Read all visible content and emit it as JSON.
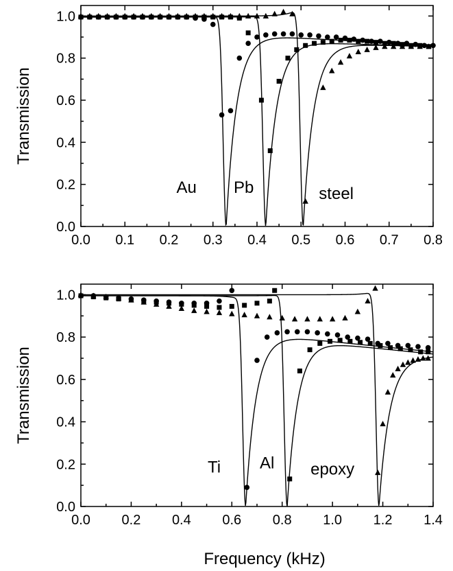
{
  "chart_data": [
    {
      "type": "scatter",
      "panel": "top",
      "xlabel": "",
      "ylabel": "Transmission",
      "xlim": [
        0.0,
        0.8
      ],
      "ylim": [
        0.0,
        1.05
      ],
      "xticks": [
        "0.0",
        "0.1",
        "0.2",
        "0.3",
        "0.4",
        "0.5",
        "0.6",
        "0.7",
        "0.8"
      ],
      "yticks": [
        "0.0",
        "0.2",
        "0.4",
        "0.6",
        "0.8",
        "1.0"
      ],
      "grid": false,
      "annotations": [
        {
          "text": "Au",
          "x": 0.24,
          "y": 0.16
        },
        {
          "text": "Pb",
          "x": 0.37,
          "y": 0.16
        },
        {
          "text": "steel",
          "x": 0.58,
          "y": 0.13
        }
      ],
      "series": [
        {
          "marker": "circle",
          "points": [
            [
              0.0,
              0.995
            ],
            [
              0.02,
              0.995
            ],
            [
              0.04,
              0.995
            ],
            [
              0.06,
              0.995
            ],
            [
              0.08,
              0.995
            ],
            [
              0.1,
              0.995
            ],
            [
              0.12,
              0.995
            ],
            [
              0.14,
              0.995
            ],
            [
              0.16,
              0.995
            ],
            [
              0.18,
              0.995
            ],
            [
              0.2,
              0.995
            ],
            [
              0.22,
              0.995
            ],
            [
              0.24,
              0.995
            ],
            [
              0.26,
              0.99
            ],
            [
              0.28,
              0.985
            ],
            [
              0.3,
              0.96
            ],
            [
              0.32,
              0.53
            ],
            [
              0.34,
              0.55
            ],
            [
              0.36,
              0.8
            ],
            [
              0.38,
              0.87
            ],
            [
              0.4,
              0.9
            ],
            [
              0.42,
              0.91
            ],
            [
              0.44,
              0.915
            ],
            [
              0.46,
              0.915
            ],
            [
              0.48,
              0.915
            ],
            [
              0.5,
              0.91
            ],
            [
              0.52,
              0.91
            ],
            [
              0.54,
              0.905
            ],
            [
              0.56,
              0.9
            ],
            [
              0.58,
              0.9
            ],
            [
              0.6,
              0.895
            ],
            [
              0.62,
              0.89
            ],
            [
              0.64,
              0.885
            ],
            [
              0.66,
              0.88
            ],
            [
              0.68,
              0.88
            ],
            [
              0.7,
              0.875
            ],
            [
              0.72,
              0.87
            ],
            [
              0.74,
              0.87
            ],
            [
              0.76,
              0.865
            ],
            [
              0.78,
              0.86
            ],
            [
              0.8,
              0.86
            ]
          ],
          "fit": {
            "start": 0.995,
            "dip_at": 0.33,
            "dip_min": 0.0,
            "peak": 1.0,
            "settle": 0.915,
            "end": 0.86
          }
        },
        {
          "marker": "square",
          "points": [
            [
              0.0,
              0.995
            ],
            [
              0.02,
              0.995
            ],
            [
              0.04,
              0.995
            ],
            [
              0.06,
              0.995
            ],
            [
              0.08,
              0.995
            ],
            [
              0.1,
              0.995
            ],
            [
              0.12,
              0.995
            ],
            [
              0.14,
              0.995
            ],
            [
              0.16,
              0.995
            ],
            [
              0.18,
              0.995
            ],
            [
              0.2,
              0.995
            ],
            [
              0.22,
              0.995
            ],
            [
              0.24,
              0.995
            ],
            [
              0.26,
              0.995
            ],
            [
              0.28,
              0.995
            ],
            [
              0.3,
              0.995
            ],
            [
              0.32,
              0.995
            ],
            [
              0.34,
              0.995
            ],
            [
              0.36,
              0.99
            ],
            [
              0.38,
              0.92
            ],
            [
              0.41,
              0.6
            ],
            [
              0.43,
              0.36
            ],
            [
              0.45,
              0.69
            ],
            [
              0.47,
              0.8
            ],
            [
              0.49,
              0.84
            ],
            [
              0.51,
              0.86
            ],
            [
              0.53,
              0.87
            ],
            [
              0.55,
              0.875
            ],
            [
              0.57,
              0.88
            ],
            [
              0.59,
              0.885
            ],
            [
              0.61,
              0.885
            ],
            [
              0.63,
              0.88
            ],
            [
              0.65,
              0.88
            ],
            [
              0.67,
              0.875
            ],
            [
              0.69,
              0.87
            ],
            [
              0.71,
              0.87
            ],
            [
              0.73,
              0.865
            ],
            [
              0.75,
              0.86
            ],
            [
              0.77,
              0.86
            ],
            [
              0.79,
              0.855
            ]
          ],
          "fit": {
            "start": 0.995,
            "dip_at": 0.42,
            "dip_min": 0.0,
            "peak": 1.0,
            "settle": 0.88,
            "end": 0.855
          }
        },
        {
          "marker": "triangle",
          "points": [
            [
              0.0,
              1.0
            ],
            [
              0.02,
              1.0
            ],
            [
              0.04,
              1.0
            ],
            [
              0.06,
              1.0
            ],
            [
              0.08,
              1.0
            ],
            [
              0.1,
              1.0
            ],
            [
              0.12,
              1.0
            ],
            [
              0.14,
              1.0
            ],
            [
              0.16,
              1.0
            ],
            [
              0.18,
              1.0
            ],
            [
              0.2,
              1.0
            ],
            [
              0.22,
              1.0
            ],
            [
              0.24,
              1.0
            ],
            [
              0.26,
              1.0
            ],
            [
              0.28,
              1.0
            ],
            [
              0.3,
              1.0
            ],
            [
              0.32,
              1.0
            ],
            [
              0.34,
              1.0
            ],
            [
              0.36,
              1.0
            ],
            [
              0.38,
              1.0
            ],
            [
              0.4,
              1.0
            ],
            [
              0.42,
              1.0
            ],
            [
              0.44,
              1.01
            ],
            [
              0.46,
              1.02
            ],
            [
              0.48,
              1.01
            ],
            [
              0.51,
              0.12
            ],
            [
              0.55,
              0.66
            ],
            [
              0.57,
              0.74
            ],
            [
              0.59,
              0.78
            ],
            [
              0.61,
              0.81
            ],
            [
              0.63,
              0.83
            ],
            [
              0.65,
              0.84
            ],
            [
              0.67,
              0.85
            ],
            [
              0.69,
              0.855
            ],
            [
              0.71,
              0.855
            ],
            [
              0.73,
              0.855
            ],
            [
              0.75,
              0.855
            ],
            [
              0.77,
              0.855
            ],
            [
              0.79,
              0.855
            ]
          ],
          "fit": {
            "start": 1.0,
            "dip_at": 0.505,
            "dip_min": 0.0,
            "peak": 1.05,
            "settle": 0.87,
            "end": 0.855
          }
        }
      ]
    },
    {
      "type": "scatter",
      "panel": "bottom",
      "xlabel": "Frequency (kHz)",
      "ylabel": "Transmission",
      "xlim": [
        0.0,
        1.4
      ],
      "ylim": [
        0.0,
        1.05
      ],
      "xticks": [
        "0.0",
        "0.2",
        "0.4",
        "0.6",
        "0.8",
        "1.0",
        "1.2",
        "1.4"
      ],
      "yticks": [
        "0.0",
        "0.2",
        "0.4",
        "0.6",
        "0.8",
        "1.0"
      ],
      "grid": false,
      "annotations": [
        {
          "text": "Ti",
          "x": 0.53,
          "y": 0.16
        },
        {
          "text": "Al",
          "x": 0.74,
          "y": 0.18
        },
        {
          "text": "epoxy",
          "x": 1.0,
          "y": 0.15
        }
      ],
      "series": [
        {
          "marker": "circle",
          "points": [
            [
              0.0,
              0.995
            ],
            [
              0.05,
              0.995
            ],
            [
              0.1,
              0.99
            ],
            [
              0.15,
              0.985
            ],
            [
              0.2,
              0.98
            ],
            [
              0.25,
              0.975
            ],
            [
              0.3,
              0.97
            ],
            [
              0.35,
              0.965
            ],
            [
              0.4,
              0.96
            ],
            [
              0.45,
              0.96
            ],
            [
              0.5,
              0.96
            ],
            [
              0.55,
              0.97
            ],
            [
              0.6,
              1.02
            ],
            [
              0.66,
              0.09
            ],
            [
              0.7,
              0.69
            ],
            [
              0.74,
              0.8
            ],
            [
              0.78,
              0.82
            ],
            [
              0.82,
              0.825
            ],
            [
              0.86,
              0.825
            ],
            [
              0.9,
              0.825
            ],
            [
              0.94,
              0.82
            ],
            [
              0.98,
              0.815
            ],
            [
              1.02,
              0.81
            ],
            [
              1.06,
              0.8
            ],
            [
              1.1,
              0.795
            ],
            [
              1.14,
              0.79
            ],
            [
              1.18,
              0.77
            ],
            [
              1.22,
              0.77
            ],
            [
              1.26,
              0.76
            ],
            [
              1.3,
              0.76
            ],
            [
              1.34,
              0.755
            ],
            [
              1.38,
              0.75
            ]
          ],
          "fit": {
            "start": 0.995,
            "dip_at": 0.655,
            "dip_min": 0.0,
            "peak": 0.97,
            "settle": 0.82,
            "end": 0.73
          }
        },
        {
          "marker": "square",
          "points": [
            [
              0.0,
              0.995
            ],
            [
              0.05,
              0.99
            ],
            [
              0.1,
              0.985
            ],
            [
              0.15,
              0.98
            ],
            [
              0.2,
              0.975
            ],
            [
              0.25,
              0.97
            ],
            [
              0.3,
              0.965
            ],
            [
              0.35,
              0.96
            ],
            [
              0.4,
              0.955
            ],
            [
              0.45,
              0.95
            ],
            [
              0.5,
              0.945
            ],
            [
              0.55,
              0.94
            ],
            [
              0.6,
              0.945
            ],
            [
              0.65,
              0.95
            ],
            [
              0.7,
              0.96
            ],
            [
              0.75,
              0.97
            ],
            [
              0.77,
              1.02
            ],
            [
              0.83,
              0.13
            ],
            [
              0.87,
              0.64
            ],
            [
              0.91,
              0.74
            ],
            [
              0.95,
              0.77
            ],
            [
              0.99,
              0.78
            ],
            [
              1.03,
              0.785
            ],
            [
              1.07,
              0.78
            ],
            [
              1.11,
              0.775
            ],
            [
              1.15,
              0.77
            ],
            [
              1.19,
              0.76
            ],
            [
              1.23,
              0.75
            ],
            [
              1.27,
              0.745
            ],
            [
              1.31,
              0.74
            ],
            [
              1.35,
              0.73
            ],
            [
              1.38,
              0.73
            ]
          ],
          "fit": {
            "start": 0.995,
            "dip_at": 0.82,
            "dip_min": 0.0,
            "peak": 1.0,
            "settle": 0.79,
            "end": 0.72
          }
        },
        {
          "marker": "triangle",
          "points": [
            [
              0.0,
              1.0
            ],
            [
              0.05,
              0.995
            ],
            [
              0.1,
              0.99
            ],
            [
              0.15,
              0.985
            ],
            [
              0.2,
              0.975
            ],
            [
              0.25,
              0.965
            ],
            [
              0.3,
              0.955
            ],
            [
              0.35,
              0.945
            ],
            [
              0.4,
              0.935
            ],
            [
              0.45,
              0.925
            ],
            [
              0.5,
              0.92
            ],
            [
              0.55,
              0.915
            ],
            [
              0.6,
              0.91
            ],
            [
              0.65,
              0.905
            ],
            [
              0.7,
              0.9
            ],
            [
              0.75,
              0.895
            ],
            [
              0.8,
              0.89
            ],
            [
              0.85,
              0.885
            ],
            [
              0.9,
              0.885
            ],
            [
              0.95,
              0.885
            ],
            [
              1.0,
              0.885
            ],
            [
              1.05,
              0.89
            ],
            [
              1.1,
              0.92
            ],
            [
              1.14,
              0.97
            ],
            [
              1.17,
              1.03
            ],
            [
              1.18,
              0.16
            ],
            [
              1.2,
              0.39
            ],
            [
              1.22,
              0.54
            ],
            [
              1.24,
              0.62
            ],
            [
              1.26,
              0.65
            ],
            [
              1.28,
              0.67
            ],
            [
              1.3,
              0.68
            ],
            [
              1.32,
              0.69
            ],
            [
              1.34,
              0.695
            ],
            [
              1.36,
              0.7
            ],
            [
              1.38,
              0.7
            ]
          ],
          "fit": {
            "start": 1.0,
            "dip_at": 1.185,
            "dip_min": 0.0,
            "peak": 1.02,
            "settle": 0.7,
            "end": 0.71
          }
        }
      ]
    }
  ]
}
